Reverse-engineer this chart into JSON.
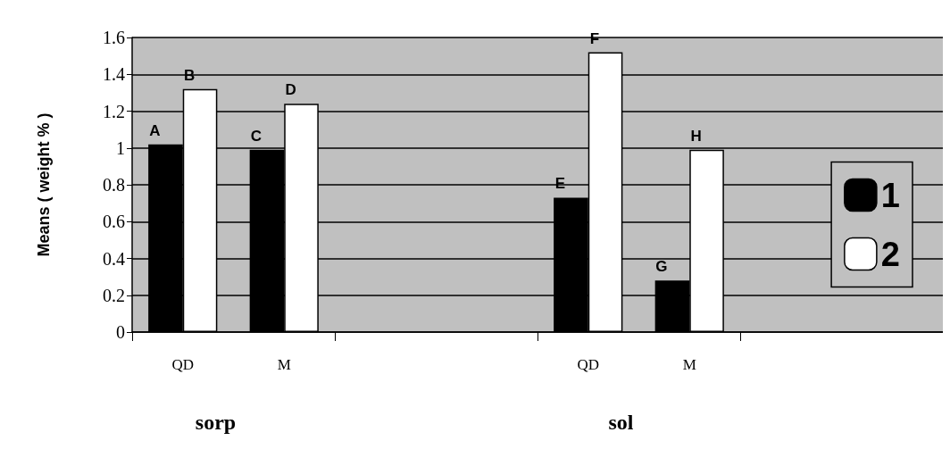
{
  "chart_data": {
    "type": "bar",
    "ylabel": "Means ( weight % )",
    "categories": [
      "QD",
      "M",
      null,
      null,
      "QD",
      "M",
      null,
      null
    ],
    "series": [
      {
        "name": "1",
        "color": "#000000",
        "values": [
          1.02,
          0.99,
          null,
          null,
          0.73,
          0.28,
          null,
          null
        ],
        "value_labels": [
          "A",
          "C",
          null,
          null,
          "E",
          "G",
          null,
          null
        ]
      },
      {
        "name": "2",
        "color": "#ffffff",
        "values": [
          1.32,
          1.24,
          null,
          null,
          1.52,
          0.99,
          null,
          null
        ],
        "value_labels": [
          "B",
          "D",
          null,
          null,
          "F",
          "H",
          null,
          null
        ]
      }
    ],
    "annotations": [
      "sorp",
      "sol"
    ],
    "ylim": [
      0,
      1.6
    ],
    "yticks": [
      0,
      0.2,
      0.4,
      0.6,
      0.8,
      1,
      1.2,
      1.4,
      1.6
    ],
    "grid": "y",
    "legend": "right"
  }
}
